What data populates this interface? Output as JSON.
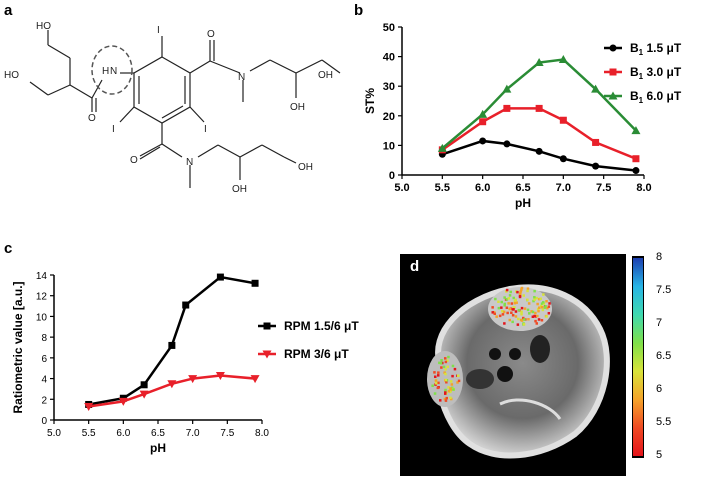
{
  "panels": {
    "a": "a",
    "b": "b",
    "c": "c",
    "d": "d"
  },
  "molecule": {
    "atoms": {
      "ho_top": "HO",
      "ho_left": "HO",
      "nh": "H",
      "n_nh": "N",
      "i_top": "I",
      "i_left": "I",
      "i_right": "I",
      "o_amide1": "O",
      "o_amide2": "O",
      "o_amide3": "O",
      "n_amide2": "N",
      "n_amide3": "N",
      "oh_1": "OH",
      "oh_2": "OH",
      "oh_3": "OH",
      "oh_4": "OH"
    }
  },
  "chart_data": [
    {
      "type": "line",
      "panel": "b",
      "xlabel": "pH",
      "ylabel": "ST%",
      "xlim": [
        5.0,
        8.0
      ],
      "ylim": [
        0,
        50
      ],
      "xticks": [
        "5.0",
        "5.5",
        "6.0",
        "6.5",
        "7.0",
        "7.5",
        "8.0"
      ],
      "yticks": [
        "0",
        "10",
        "20",
        "30",
        "40",
        "50"
      ],
      "legend_position": "right",
      "series": [
        {
          "name": "B₁ 1.5 μT",
          "name_main": "B",
          "name_sub": "1",
          "name_rest": " 1.5 μT",
          "color": "#000000",
          "marker": "circle",
          "x": [
            5.5,
            6.0,
            6.3,
            6.7,
            7.0,
            7.4,
            7.9
          ],
          "y": [
            7,
            11.5,
            10.5,
            8,
            5.5,
            3,
            1.5
          ]
        },
        {
          "name": "B₁ 3.0 μT",
          "name_main": "B",
          "name_sub": "1",
          "name_rest": " 3.0 μT",
          "color": "#e8202a",
          "marker": "square",
          "x": [
            5.5,
            6.0,
            6.3,
            6.7,
            7.0,
            7.4,
            7.9
          ],
          "y": [
            8.5,
            18,
            22.5,
            22.5,
            18.5,
            11,
            5.5
          ]
        },
        {
          "name": "B₁ 6.0 μT",
          "name_main": "B",
          "name_sub": "1",
          "name_rest": " 6.0 μT",
          "color": "#2a8c35",
          "marker": "triangle",
          "x": [
            5.5,
            6.0,
            6.3,
            6.7,
            7.0,
            7.4,
            7.9
          ],
          "y": [
            9,
            20.5,
            29,
            38,
            39,
            29,
            15
          ]
        }
      ]
    },
    {
      "type": "line",
      "panel": "c",
      "xlabel": "pH",
      "ylabel": "Ratiometric value [a.u.]",
      "xlim": [
        5.0,
        8.0
      ],
      "ylim": [
        0,
        14
      ],
      "xticks": [
        "5.0",
        "5.5",
        "6.0",
        "6.5",
        "7.0",
        "7.5",
        "8.0"
      ],
      "yticks": [
        "0",
        "2",
        "4",
        "6",
        "8",
        "10",
        "12",
        "14"
      ],
      "legend_position": "right",
      "series": [
        {
          "name": "RPM 1.5/6 μT",
          "color": "#000000",
          "marker": "square",
          "x": [
            5.5,
            6.0,
            6.3,
            6.7,
            6.9,
            7.4,
            7.9
          ],
          "y": [
            1.5,
            2.1,
            3.4,
            7.2,
            11.1,
            13.8,
            13.2
          ]
        },
        {
          "name": "RPM 3/6 μT",
          "color": "#e8202a",
          "marker": "triangle-down",
          "x": [
            5.5,
            6.0,
            6.3,
            6.7,
            7.0,
            7.4,
            7.9
          ],
          "y": [
            1.3,
            1.8,
            2.5,
            3.5,
            4.0,
            4.3,
            4.0
          ]
        }
      ]
    }
  ],
  "colorbar": {
    "ticks": [
      "8",
      "7.5",
      "7",
      "6.5",
      "6",
      "5.5",
      "5"
    ],
    "min": 5,
    "max": 8,
    "colors": [
      "#1e3fb0",
      "#27b4e6",
      "#3fd9b0",
      "#7fe04a",
      "#d8e33a",
      "#f4a32a",
      "#ef4a24",
      "#e4141b"
    ]
  }
}
